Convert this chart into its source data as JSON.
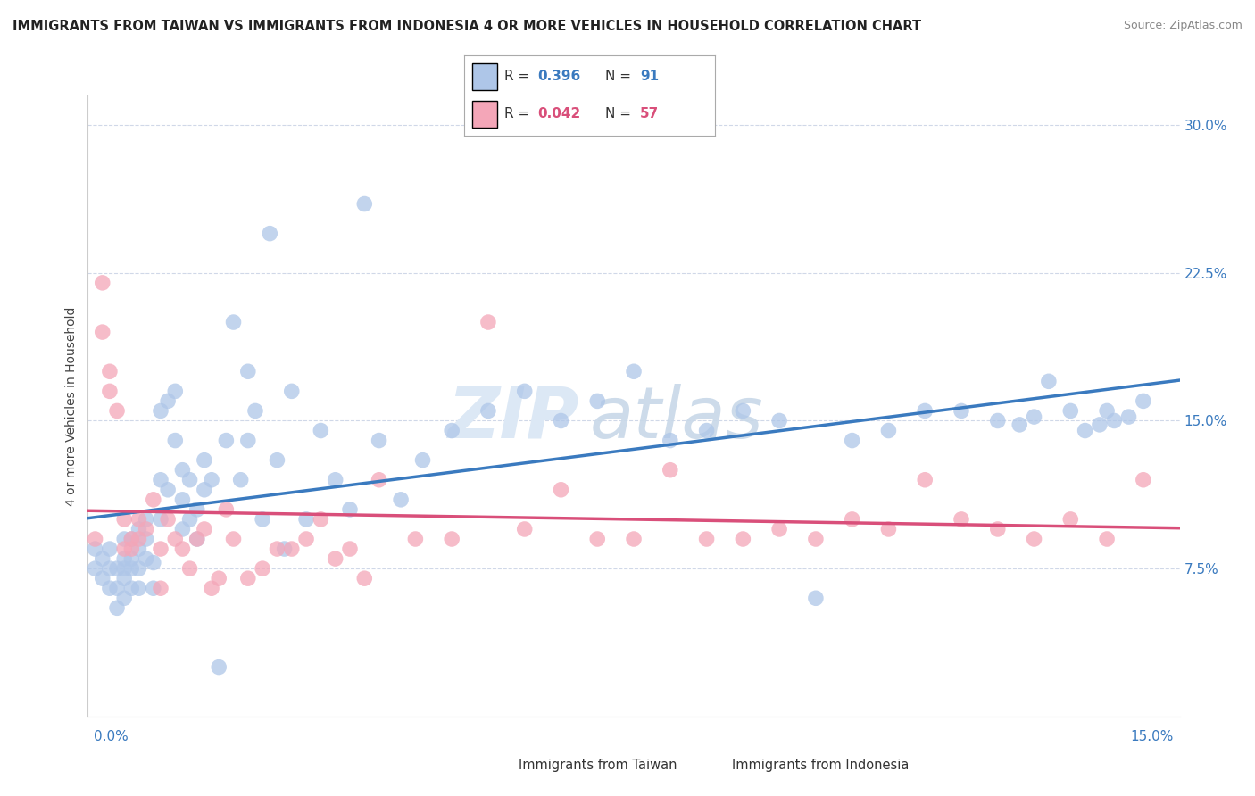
{
  "title": "IMMIGRANTS FROM TAIWAN VS IMMIGRANTS FROM INDONESIA 4 OR MORE VEHICLES IN HOUSEHOLD CORRELATION CHART",
  "source": "Source: ZipAtlas.com",
  "ylabel": "4 or more Vehicles in Household",
  "y_ticks": [
    0.0,
    0.075,
    0.15,
    0.225,
    0.3
  ],
  "y_tick_labels": [
    "",
    "7.5%",
    "15.0%",
    "22.5%",
    "30.0%"
  ],
  "x_lim": [
    0.0,
    0.15
  ],
  "y_lim": [
    0.0,
    0.315
  ],
  "taiwan_R": 0.396,
  "taiwan_N": 91,
  "indonesia_R": 0.042,
  "indonesia_N": 57,
  "taiwan_color": "#aec6e8",
  "indonesia_color": "#f4a6b8",
  "taiwan_line_color": "#3a7abf",
  "indonesia_line_color": "#d94f7a",
  "watermark_color": "#dce8f5",
  "background_color": "#ffffff",
  "grid_color": "#d0d8e8",
  "taiwan_scatter_x": [
    0.001,
    0.001,
    0.002,
    0.002,
    0.003,
    0.003,
    0.003,
    0.004,
    0.004,
    0.004,
    0.005,
    0.005,
    0.005,
    0.005,
    0.005,
    0.006,
    0.006,
    0.006,
    0.006,
    0.007,
    0.007,
    0.007,
    0.007,
    0.008,
    0.008,
    0.008,
    0.009,
    0.009,
    0.01,
    0.01,
    0.01,
    0.011,
    0.011,
    0.012,
    0.012,
    0.013,
    0.013,
    0.013,
    0.014,
    0.014,
    0.015,
    0.015,
    0.016,
    0.016,
    0.017,
    0.018,
    0.019,
    0.02,
    0.021,
    0.022,
    0.022,
    0.023,
    0.024,
    0.025,
    0.026,
    0.027,
    0.028,
    0.03,
    0.032,
    0.034,
    0.036,
    0.038,
    0.04,
    0.043,
    0.046,
    0.05,
    0.055,
    0.06,
    0.065,
    0.07,
    0.075,
    0.08,
    0.085,
    0.09,
    0.095,
    0.1,
    0.105,
    0.11,
    0.115,
    0.12,
    0.125,
    0.128,
    0.13,
    0.132,
    0.135,
    0.137,
    0.139,
    0.14,
    0.141,
    0.143,
    0.145
  ],
  "taiwan_scatter_y": [
    0.075,
    0.085,
    0.07,
    0.08,
    0.065,
    0.075,
    0.085,
    0.055,
    0.065,
    0.075,
    0.06,
    0.07,
    0.075,
    0.08,
    0.09,
    0.065,
    0.075,
    0.08,
    0.09,
    0.065,
    0.075,
    0.085,
    0.095,
    0.08,
    0.09,
    0.1,
    0.065,
    0.078,
    0.1,
    0.12,
    0.155,
    0.115,
    0.16,
    0.14,
    0.165,
    0.095,
    0.11,
    0.125,
    0.1,
    0.12,
    0.09,
    0.105,
    0.115,
    0.13,
    0.12,
    0.025,
    0.14,
    0.2,
    0.12,
    0.14,
    0.175,
    0.155,
    0.1,
    0.245,
    0.13,
    0.085,
    0.165,
    0.1,
    0.145,
    0.12,
    0.105,
    0.26,
    0.14,
    0.11,
    0.13,
    0.145,
    0.155,
    0.165,
    0.15,
    0.16,
    0.175,
    0.14,
    0.145,
    0.155,
    0.15,
    0.06,
    0.14,
    0.145,
    0.155,
    0.155,
    0.15,
    0.148,
    0.152,
    0.17,
    0.155,
    0.145,
    0.148,
    0.155,
    0.15,
    0.152,
    0.16
  ],
  "indonesia_scatter_x": [
    0.001,
    0.002,
    0.002,
    0.003,
    0.003,
    0.004,
    0.005,
    0.005,
    0.006,
    0.006,
    0.007,
    0.007,
    0.008,
    0.009,
    0.01,
    0.01,
    0.011,
    0.012,
    0.013,
    0.014,
    0.015,
    0.016,
    0.017,
    0.018,
    0.019,
    0.02,
    0.022,
    0.024,
    0.026,
    0.028,
    0.03,
    0.032,
    0.034,
    0.036,
    0.038,
    0.04,
    0.045,
    0.05,
    0.055,
    0.06,
    0.065,
    0.07,
    0.075,
    0.08,
    0.085,
    0.09,
    0.095,
    0.1,
    0.105,
    0.11,
    0.115,
    0.12,
    0.125,
    0.13,
    0.135,
    0.14,
    0.145
  ],
  "indonesia_scatter_y": [
    0.09,
    0.22,
    0.195,
    0.165,
    0.175,
    0.155,
    0.085,
    0.1,
    0.085,
    0.09,
    0.09,
    0.1,
    0.095,
    0.11,
    0.065,
    0.085,
    0.1,
    0.09,
    0.085,
    0.075,
    0.09,
    0.095,
    0.065,
    0.07,
    0.105,
    0.09,
    0.07,
    0.075,
    0.085,
    0.085,
    0.09,
    0.1,
    0.08,
    0.085,
    0.07,
    0.12,
    0.09,
    0.09,
    0.2,
    0.095,
    0.115,
    0.09,
    0.09,
    0.125,
    0.09,
    0.09,
    0.095,
    0.09,
    0.1,
    0.095,
    0.12,
    0.1,
    0.095,
    0.09,
    0.1,
    0.09,
    0.12
  ]
}
